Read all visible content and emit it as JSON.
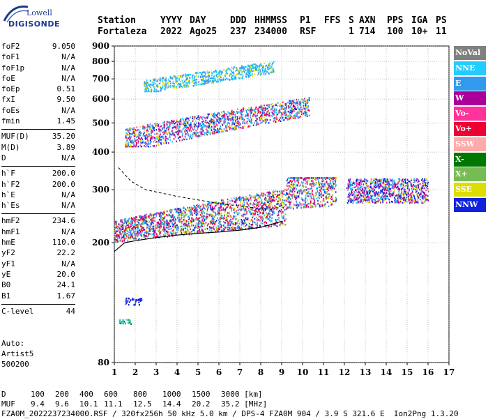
{
  "logo": {
    "line1": "Lowell",
    "line2": "DIGISONDE"
  },
  "header": {
    "row1": [
      "Station",
      "YYYY",
      "DAY",
      "DDD",
      "HHMMSS",
      "P1",
      "FFS",
      "S",
      "AXN",
      "PPS",
      "IGA",
      "PS"
    ],
    "row2": [
      "Fortaleza",
      "2022",
      "Ago25",
      "237",
      "234000",
      "RSF",
      "",
      "1",
      "714",
      "100",
      "10+",
      "11"
    ]
  },
  "params_group1": [
    {
      "name": "foF2",
      "value": "9.050"
    },
    {
      "name": "foF1",
      "value": "N/A"
    },
    {
      "name": "foF1p",
      "value": "N/A"
    },
    {
      "name": "foE",
      "value": "N/A"
    },
    {
      "name": "foEp",
      "value": "0.51"
    },
    {
      "name": "fxI",
      "value": "9.50"
    },
    {
      "name": "foEs",
      "value": "N/A"
    },
    {
      "name": "fmin",
      "value": "1.45"
    }
  ],
  "params_group2": [
    {
      "name": "MUF(D)",
      "value": "35.20"
    },
    {
      "name": "M(D)",
      "value": "3.89"
    },
    {
      "name": "D",
      "value": "N/A"
    }
  ],
  "params_group3": [
    {
      "name": "h`F",
      "value": "200.0"
    },
    {
      "name": "h`F2",
      "value": "200.0"
    },
    {
      "name": "h`E",
      "value": "N/A"
    },
    {
      "name": "h`Es",
      "value": "N/A"
    }
  ],
  "params_group4": [
    {
      "name": "hmF2",
      "value": "234.6"
    },
    {
      "name": "hmF1",
      "value": "N/A"
    },
    {
      "name": "hmE",
      "value": "110.0"
    },
    {
      "name": "yF2",
      "value": "22.2"
    },
    {
      "name": "yF1",
      "value": "N/A"
    },
    {
      "name": "yE",
      "value": "20.0"
    },
    {
      "name": "B0",
      "value": "24.1"
    },
    {
      "name": "B1",
      "value": "1.67"
    }
  ],
  "params_group5": [
    {
      "name": "C-level",
      "value": "44"
    }
  ],
  "auto": {
    "line1": "Auto:",
    "line2": "Artist5",
    "line3": "500200"
  },
  "legend": [
    {
      "label": "NoVal",
      "color": "#808080"
    },
    {
      "label": "NNE",
      "color": "#22ccff"
    },
    {
      "label": "E",
      "color": "#3399ee"
    },
    {
      "label": "W",
      "color": "#aa0099"
    },
    {
      "label": "Vo-",
      "color": "#ff3399"
    },
    {
      "label": "Vo+",
      "color": "#ee0033"
    },
    {
      "label": "SSW",
      "color": "#ffaaaa"
    },
    {
      "label": "X-",
      "color": "#007700"
    },
    {
      "label": "X+",
      "color": "#77bb55"
    },
    {
      "label": "SSE",
      "color": "#dddd00"
    },
    {
      "label": "NNW",
      "color": "#1122dd"
    }
  ],
  "chart_data": {
    "type": "scatter",
    "title": "",
    "xlabel": "",
    "ylabel": "",
    "xlim": [
      1,
      17
    ],
    "ylim": [
      80,
      900
    ],
    "y_scale": "log",
    "xticks": [
      "1",
      "2",
      "3",
      "4",
      "5",
      "6",
      "7",
      "8",
      "9",
      "10",
      "11",
      "12",
      "13",
      "14",
      "15",
      "16",
      "17"
    ],
    "yticks": [
      "900",
      "800",
      "700",
      "600",
      "500",
      "400",
      "300",
      "200",
      "80"
    ],
    "grid": true,
    "ionogram_regions": [
      {
        "name": "F-trace-main",
        "freq_range": [
          1.0,
          11.6
        ],
        "height_range": [
          200,
          330
        ],
        "mode": "NNE/E/Vo+/W"
      },
      {
        "name": "F-second-hop",
        "freq_range": [
          1.5,
          10.3
        ],
        "height_range": [
          420,
          620
        ],
        "mode": "NNE/E/SSE/W"
      },
      {
        "name": "F-third-hop",
        "freq_range": [
          2.4,
          8.6
        ],
        "height_range": [
          640,
          810
        ],
        "mode": "NNE/E/SSE"
      },
      {
        "name": "spread-F-high-freq",
        "freq_range": [
          12.1,
          16.0
        ],
        "height_range": [
          270,
          370
        ],
        "mode": "NNW/E/W"
      },
      {
        "name": "low-echo-NNW",
        "freq_range": [
          1.5,
          2.3
        ],
        "height_range": [
          125,
          132
        ],
        "mode": "NNW"
      },
      {
        "name": "low-echo-X",
        "freq_range": [
          1.2,
          1.8
        ],
        "height_range": [
          108,
          112
        ],
        "mode": "X+/NNE"
      }
    ],
    "profile_curve": {
      "name": "electron-density-profile",
      "points": [
        [
          1.0,
          187
        ],
        [
          1.5,
          200
        ],
        [
          2.0,
          203
        ],
        [
          3.0,
          208
        ],
        [
          4.0,
          212
        ],
        [
          5.0,
          215
        ],
        [
          6.0,
          217
        ],
        [
          7.0,
          220
        ],
        [
          8.0,
          225
        ],
        [
          8.7,
          232
        ],
        [
          9.05,
          236
        ]
      ]
    },
    "dashed_curve": {
      "name": "virtual-height-trace",
      "points": [
        [
          1.2,
          355
        ],
        [
          1.8,
          320
        ],
        [
          2.5,
          300
        ],
        [
          4.0,
          285
        ],
        [
          6.0,
          270
        ],
        [
          7.5,
          262
        ],
        [
          8.5,
          258
        ],
        [
          9.0,
          265
        ]
      ]
    }
  },
  "footer": {
    "d_label": "D",
    "d_values": [
      "100",
      "200",
      "400",
      "600",
      "800",
      "1000",
      "1500",
      "3000 [km]"
    ],
    "muf_label": "MUF",
    "muf_values": [
      "9.4",
      "9.6",
      "10.1",
      "11.1",
      "12.5",
      "14.4",
      "20.2",
      "35.2 [MHz]"
    ],
    "info": "FZA0M_2022237234000.RSF / 320fx256h 50 kHz 5.0 km / DPS-4 FZA0M 904 / 3.9 S 321.6 E  Ion2Png 1.3.20"
  }
}
